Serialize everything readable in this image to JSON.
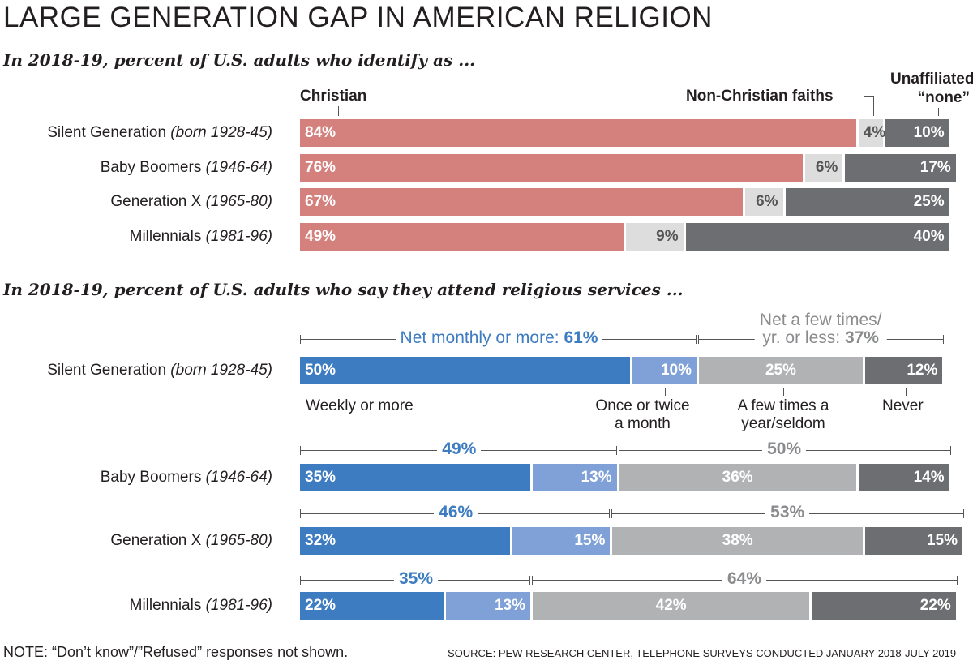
{
  "title": "LARGE GENERATION GAP IN AMERICAN RELIGION",
  "subtitle1": "In 2018-19, percent of U.S. adults who identify as ...",
  "subtitle2": "In 2018-19, percent of U.S. adults who say they attend religious services ...",
  "note": "NOTE: “Don’t know”/”Refused” responses not shown.",
  "source": "SOURCE:  PEW RESEARCH CENTER, TELEPHONE SURVEYS CONDUCTED JANUARY 2018-JULY 2019",
  "rows": [
    {
      "name": "Silent Generation",
      "years": "(born 1928-45)"
    },
    {
      "name": "Baby Boomers",
      "years": "(1946-64)"
    },
    {
      "name": "Generation X",
      "years": "(1965-80)"
    },
    {
      "name": "Millennials",
      "years": "(1981-96)"
    }
  ],
  "colors": {
    "christian": "#d4807c",
    "non_christian": "#dddddd",
    "unaffiliated": "#6d6e71",
    "weekly": "#3d7cc1",
    "monthly": "#7fa1d8",
    "few_times": "#b1b2b4",
    "never": "#6d6e71",
    "net_monthly_text": "#3d7cc1",
    "net_less_text": "#8a8b8d"
  },
  "chart_data": [
    {
      "type": "bar",
      "orientation": "horizontal-stacked",
      "categories": [
        "Silent Generation (born 1928-45)",
        "Baby Boomers (1946-64)",
        "Generation X (1965-80)",
        "Millennials (1981-96)"
      ],
      "series": [
        {
          "name": "Christian",
          "values": [
            84,
            76,
            67,
            49
          ],
          "labels": [
            "84%",
            "76%",
            "67%",
            "49%"
          ]
        },
        {
          "name": "Non-Christian faiths",
          "values": [
            4,
            6,
            6,
            9
          ],
          "labels": [
            "4%",
            "6%",
            "6%",
            "9%"
          ]
        },
        {
          "name": "Unaffiliated/ “none”",
          "values": [
            10,
            17,
            25,
            40
          ],
          "labels": [
            "10%",
            "17%",
            "25%",
            "40%"
          ]
        }
      ],
      "legend_labels": {
        "christian": "Christian",
        "non_christian": "Non-Christian faiths",
        "unaffiliated_1": "Unaffiliated/",
        "unaffiliated_2": "“none”"
      },
      "legend": "top, labels above bars"
    },
    {
      "type": "bar",
      "orientation": "horizontal-stacked",
      "categories": [
        "Silent Generation (born 1928-45)",
        "Baby Boomers (1946-64)",
        "Generation X (1965-80)",
        "Millennials (1981-96)"
      ],
      "series": [
        {
          "name": "Weekly or more",
          "values": [
            50,
            35,
            32,
            22
          ],
          "labels": [
            "50%",
            "35%",
            "32%",
            "22%"
          ]
        },
        {
          "name": "Once or twice a month",
          "values": [
            10,
            13,
            15,
            13
          ],
          "labels": [
            "10%",
            "13%",
            "15%",
            "13%"
          ]
        },
        {
          "name": "A few times a year/seldom",
          "values": [
            25,
            36,
            38,
            42
          ],
          "labels": [
            "25%",
            "36%",
            "38%",
            "42%"
          ]
        },
        {
          "name": "Never",
          "values": [
            12,
            14,
            15,
            22
          ],
          "labels": [
            "12%",
            "14%",
            "15%",
            "22%"
          ]
        }
      ],
      "legend_labels": {
        "weekly": "Weekly or more",
        "monthly_1": "Once or twice",
        "monthly_2": "a month",
        "few_1": "A few times a",
        "few_2": "year/seldom",
        "never": "Never"
      },
      "nets": {
        "monthly_prefix": "Net monthly or more: ",
        "less_prefix_1": "Net a few times/",
        "less_prefix_2": "yr. or less: ",
        "monthly": [
          "61%",
          "49%",
          "46%",
          "35%"
        ],
        "less": [
          "37%",
          "50%",
          "53%",
          "64%"
        ]
      }
    }
  ]
}
